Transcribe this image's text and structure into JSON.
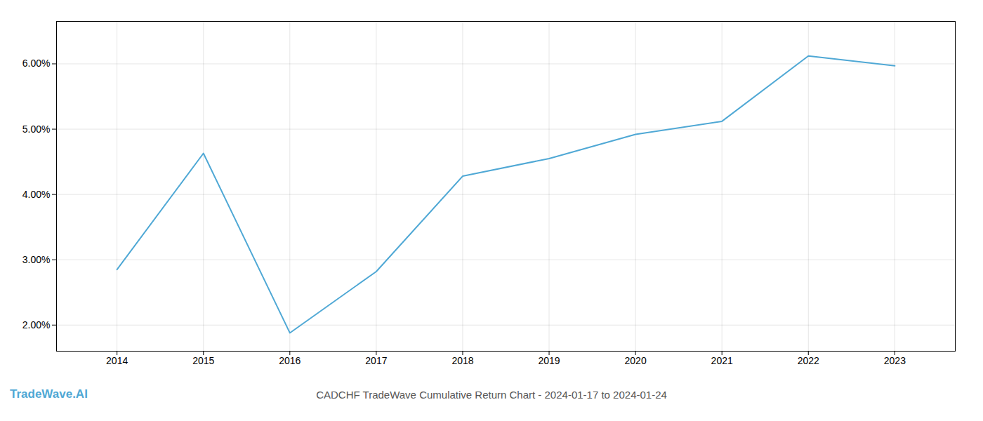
{
  "chart_data": {
    "type": "line",
    "title": "CADCHF TradeWave Cumulative Return Chart - 2024-01-17 to 2024-01-24",
    "annotations": [
      "TradeWave.AI"
    ],
    "x": [
      2014,
      2015,
      2016,
      2017,
      2018,
      2019,
      2020,
      2021,
      2022,
      2023
    ],
    "values": [
      2.85,
      4.63,
      1.88,
      2.82,
      4.28,
      4.55,
      4.92,
      5.12,
      6.12,
      5.97
    ],
    "color": "#4fa8d5",
    "xlim": [
      2013.3,
      2023.7
    ],
    "xticks": [
      2014,
      2015,
      2016,
      2017,
      2018,
      2019,
      2020,
      2021,
      2022,
      2023
    ],
    "ylim": [
      1.6,
      6.65
    ],
    "yticks": [
      {
        "value": 2.0,
        "label": "2.00%"
      },
      {
        "value": 3.0,
        "label": "3.00%"
      },
      {
        "value": 4.0,
        "label": "4.00%"
      },
      {
        "value": 5.0,
        "label": "5.00%"
      },
      {
        "value": 6.0,
        "label": "6.00%"
      }
    ],
    "grid": true
  }
}
